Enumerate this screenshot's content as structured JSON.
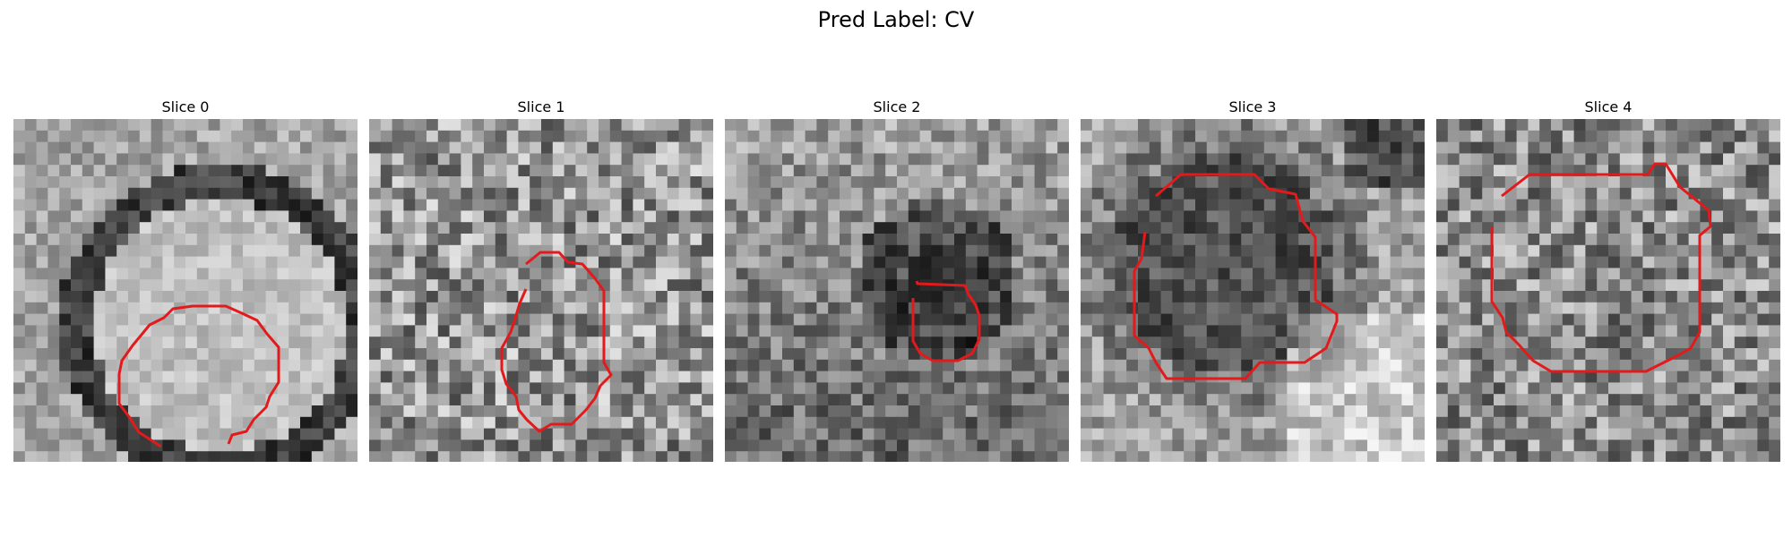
{
  "figure": {
    "title": "Pred Label: CV"
  },
  "panels": [
    {
      "title": "Slice 0"
    },
    {
      "title": "Slice 1"
    },
    {
      "title": "Slice 2"
    },
    {
      "title": "Slice 3"
    },
    {
      "title": "Slice 4"
    }
  ],
  "contour_color": "#e31a1c"
}
